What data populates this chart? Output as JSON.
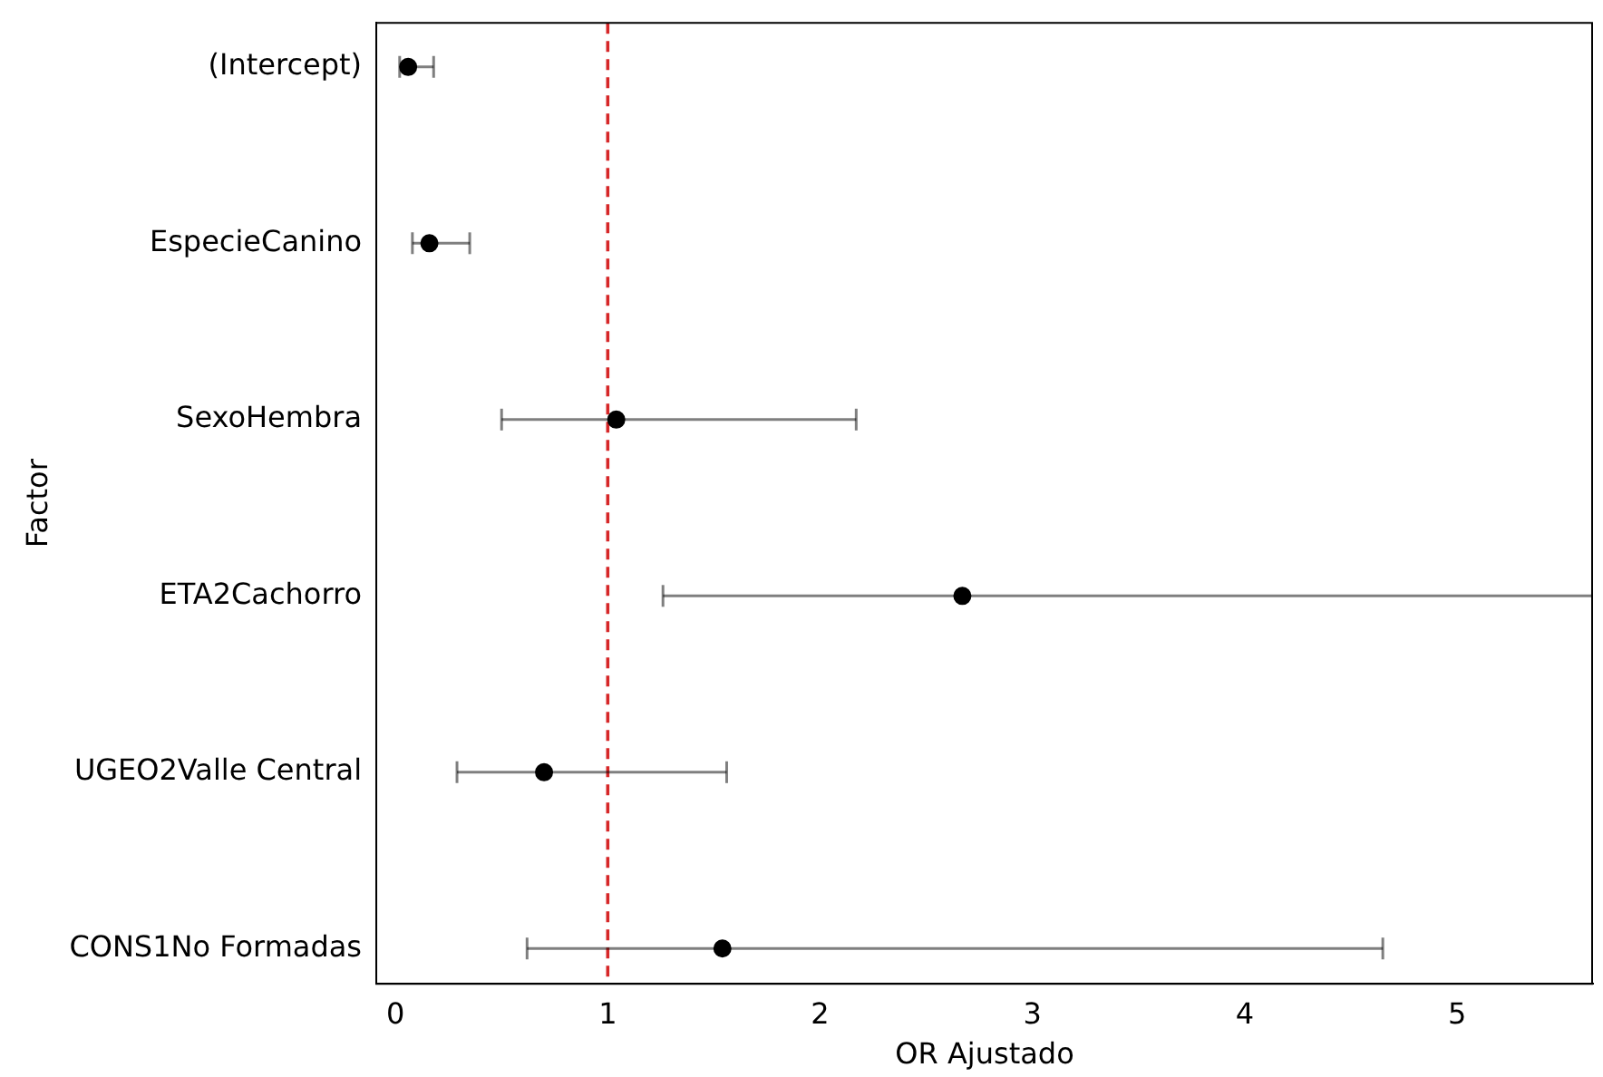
{
  "chart_data": {
    "type": "scatter",
    "orientation": "horizontal",
    "xlabel": "OR Ajustado",
    "ylabel": "Factor",
    "categories": [
      "(Intercept)",
      "EspecieCanino",
      "SexoHembra",
      "ETA2Cachorro",
      "UGEO2Valle Central",
      "CONS1No Formadas"
    ],
    "color": "#000000",
    "values": [
      0.06,
      0.16,
      1.04,
      2.67,
      0.7,
      1.54
    ],
    "errors": [
      [
        0.02,
        0.18
      ],
      [
        0.08,
        0.35
      ],
      [
        0.5,
        2.17
      ],
      [
        1.26,
        5.64
      ],
      [
        0.29,
        1.56
      ],
      [
        0.62,
        4.65
      ]
    ],
    "xlim": [
      -0.09,
      5.64
    ],
    "xticks": [
      0,
      1,
      2,
      3,
      4,
      5
    ],
    "marker": "circle",
    "ref_lines": [
      {
        "axis": "x",
        "value": 1,
        "color": "#d62728",
        "line_style": "dashed"
      }
    ],
    "grid": false,
    "legend": false
  }
}
